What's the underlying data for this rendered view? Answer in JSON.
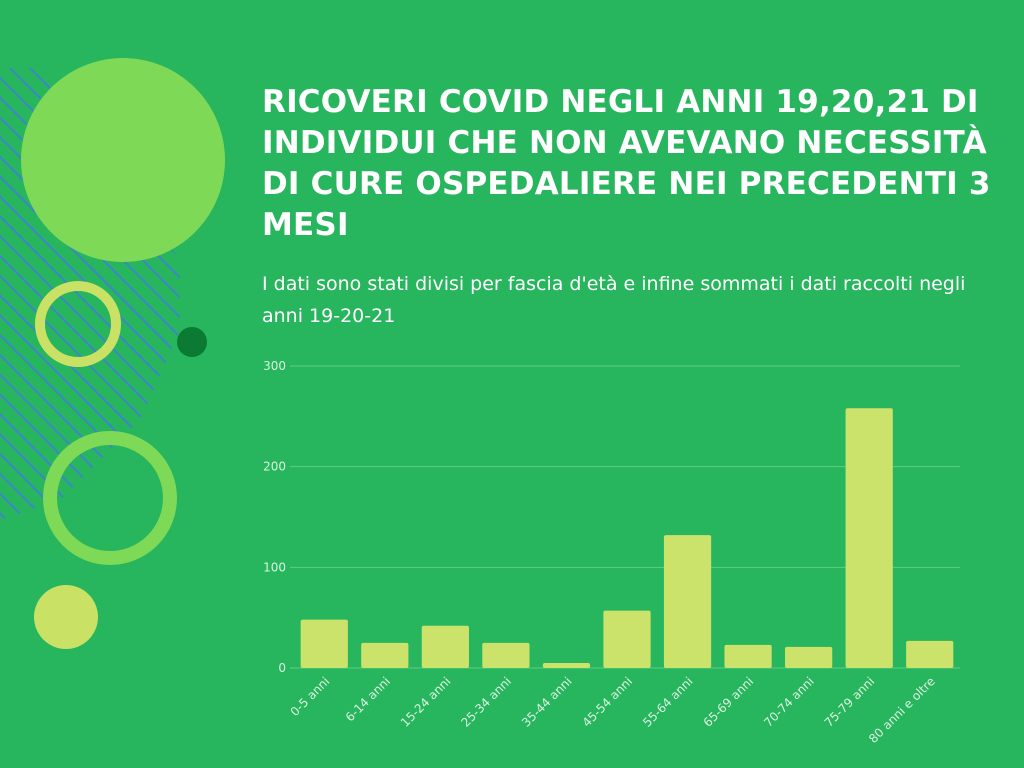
{
  "title": "RICOVERI COVID NEGLI ANNI 19,20,21 DI INDIVIDUI CHE NON AVEVANO NECESSITÀ DI CURE OSPEDALIERE NEI PRECEDENTI 3 MESI",
  "subtitle": "I dati sono stati divisi per fascia d'età e infine sommati i dati raccolti negli anni 19-20-21",
  "colors": {
    "background": "#27b55e",
    "bar": "#cbe36a",
    "gridline": "#5fcc82",
    "decor_light": "#7ed957",
    "decor_yellow": "#c9e265",
    "decor_dark": "#0b7a32",
    "stripes": "#3d86c8"
  },
  "chart_data": {
    "type": "bar",
    "categories": [
      "0-5 anni",
      "6-14 anni",
      "15-24 anni",
      "25-34 anni",
      "35-44 anni",
      "45-54 anni",
      "55-64 anni",
      "65-69 anni",
      "70-74 anni",
      "75-79 anni",
      "80 anni e oltre"
    ],
    "values": [
      48,
      25,
      42,
      25,
      5,
      57,
      132,
      23,
      21,
      258,
      27
    ],
    "ylim": [
      0,
      300
    ],
    "yticks": [
      0,
      100,
      200,
      300
    ],
    "xlabel": "",
    "ylabel": "",
    "grid": true,
    "legend": "none"
  }
}
